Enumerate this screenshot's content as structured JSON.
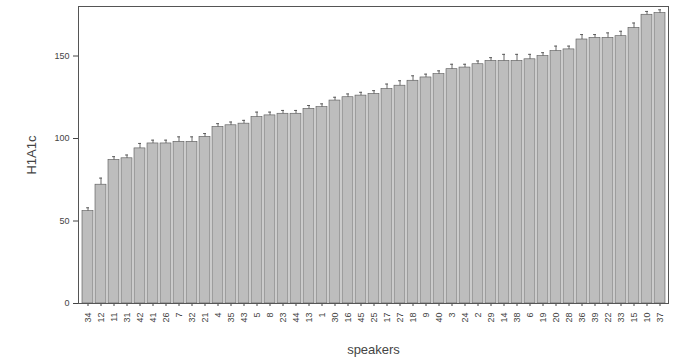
{
  "chart_data": {
    "type": "bar",
    "x_label": "speakers",
    "y_label": "H1A1c",
    "categories": [
      "34",
      "12",
      "11",
      "31",
      "42",
      "41",
      "26",
      "7",
      "32",
      "21",
      "4",
      "35",
      "43",
      "5",
      "8",
      "23",
      "44",
      "13",
      "1",
      "30",
      "16",
      "45",
      "25",
      "17",
      "27",
      "18",
      "9",
      "40",
      "3",
      "24",
      "2",
      "29",
      "14",
      "38",
      "6",
      "19",
      "20",
      "28",
      "36",
      "39",
      "22",
      "33",
      "15",
      "10",
      "37"
    ],
    "values": [
      56,
      72,
      87,
      88,
      94,
      97,
      97,
      98,
      98,
      101,
      107,
      108,
      109,
      113,
      114,
      115,
      115,
      118,
      119,
      123,
      125,
      126,
      127,
      130,
      132,
      135,
      137,
      139,
      142,
      143,
      145,
      147,
      147,
      147,
      148,
      150,
      153,
      154,
      160,
      161,
      161,
      162,
      167,
      175,
      176
    ],
    "errors": [
      2,
      4,
      2,
      2,
      3,
      2,
      2,
      3,
      3,
      2,
      2,
      2,
      2,
      3,
      2,
      2,
      2,
      2,
      2,
      2,
      2,
      2,
      2,
      3,
      3,
      3,
      2,
      2,
      3,
      2,
      2,
      2,
      4,
      4,
      3,
      2,
      3,
      2,
      3,
      2,
      3,
      3,
      3,
      2,
      2
    ],
    "color": "#bdbdbd",
    "ylim": [
      0,
      180
    ],
    "yticks": [
      0,
      50,
      100,
      150
    ],
    "grid": false
  }
}
